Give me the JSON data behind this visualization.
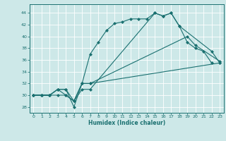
{
  "xlabel": "Humidex (Indice chaleur)",
  "background_color": "#cde8e8",
  "line_color": "#1a7070",
  "grid_color": "#ffffff",
  "xlim": [
    -0.5,
    23.5
  ],
  "ylim": [
    27,
    45.5
  ],
  "yticks": [
    28,
    30,
    32,
    34,
    36,
    38,
    40,
    42,
    44
  ],
  "xticks": [
    0,
    1,
    2,
    3,
    4,
    5,
    6,
    7,
    8,
    9,
    10,
    11,
    12,
    13,
    14,
    15,
    16,
    17,
    18,
    19,
    20,
    21,
    22,
    23
  ],
  "line1_x": [
    0,
    1,
    2,
    3,
    4,
    5,
    6,
    7,
    8,
    9,
    10,
    11,
    12,
    13,
    14,
    15,
    16,
    17,
    18,
    19,
    20,
    21,
    22
  ],
  "line1_y": [
    30,
    30,
    30,
    31,
    31,
    28,
    32,
    37,
    39,
    41,
    42.2,
    42.5,
    43,
    43,
    43,
    44,
    43.5,
    44,
    41.8,
    39,
    38,
    37.5,
    35.5
  ],
  "line2_x": [
    0,
    1,
    2,
    3,
    4,
    5,
    6,
    7,
    15,
    16,
    17,
    18,
    22,
    23
  ],
  "line2_y": [
    30,
    30,
    30,
    31,
    31,
    29,
    31,
    31,
    44,
    43.5,
    44,
    41.8,
    37.5,
    35.5
  ],
  "line3_x": [
    0,
    1,
    2,
    3,
    4,
    5,
    6,
    7,
    19,
    20,
    23
  ],
  "line3_y": [
    30,
    30,
    30,
    31,
    30,
    29,
    32,
    32,
    40,
    38.5,
    35.8
  ],
  "line4_x": [
    0,
    1,
    2,
    3,
    4,
    5,
    6,
    7,
    23
  ],
  "line4_y": [
    30,
    30,
    30,
    30,
    30,
    29,
    32,
    32,
    35.5
  ]
}
